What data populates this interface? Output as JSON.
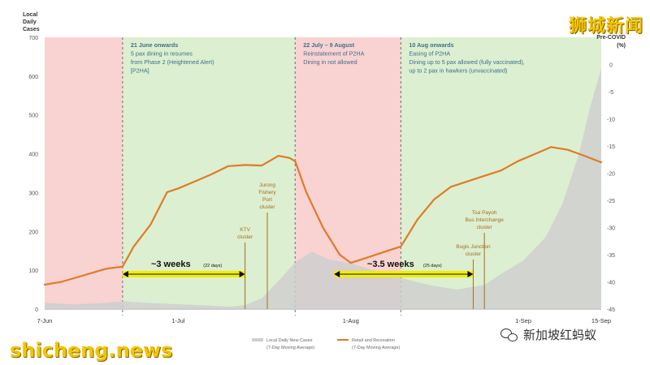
{
  "watermarks": {
    "top_right": "狮城新闻",
    "bottom_left": "shicheng.news",
    "wechat_account": "新加坡红蚂蚁"
  },
  "colors": {
    "phase_red": "#f9d2d2",
    "phase_green": "#dcefd0",
    "cases_fill": "#cfcfcf",
    "mobility_line": "#e07b26",
    "annotation_text": "#a86b1f",
    "phase_text": "#3f6f8c",
    "duration_bar": "#f2ee00"
  },
  "chart_data": {
    "type": "line",
    "x_start": "2021-06-07",
    "x_end": "2021-09-15",
    "x_ticks": [
      {
        "date": "2021-06-07",
        "label": "7-Jun"
      },
      {
        "date": "2021-07-01",
        "label": "1-Jul"
      },
      {
        "date": "2021-08-01",
        "label": "1-Aug"
      },
      {
        "date": "2021-09-01",
        "label": "1-Sep"
      },
      {
        "date": "2021-09-15",
        "label": "15-Sep"
      }
    ],
    "y_left": {
      "label_lines": [
        "Local",
        "Daily",
        "Cases"
      ],
      "range": [
        0,
        700
      ],
      "ticks": [
        0,
        100,
        200,
        300,
        400,
        500,
        600,
        700
      ]
    },
    "y_right": {
      "label_lines": [
        "Pre-COVID",
        "(%)"
      ],
      "range": [
        -45,
        5
      ],
      "ticks": [
        0,
        -5,
        -10,
        -15,
        -20,
        -25,
        -30,
        -35,
        -40,
        -45
      ]
    },
    "phases": [
      {
        "start": "2021-06-07",
        "end": "2021-06-21",
        "type": "red",
        "lines": []
      },
      {
        "start": "2021-06-21",
        "end": "2021-07-22",
        "type": "green",
        "lines": [
          "21 June onwards",
          "5 pax dining in resumes",
          "from Phase 2 (Heightened Alert)",
          "[P2HA]"
        ]
      },
      {
        "start": "2021-07-22",
        "end": "2021-08-10",
        "type": "red",
        "lines": [
          "22 July – 9 August",
          "Reinstatement of P2HA",
          "Dining in not allowed"
        ]
      },
      {
        "start": "2021-08-10",
        "end": "2021-09-15",
        "type": "green",
        "lines": [
          "10 Aug onwards",
          "Easing of P2HA",
          "Dining up to 5 pax allowed (fully vaccinated),",
          "up to 2 pax in hawkers (unvaccinated)"
        ]
      }
    ],
    "series": [
      {
        "name": "Local Daily New Cases",
        "sub": "(7-Day Moving Average)",
        "axis": "left",
        "kind": "area",
        "points": [
          [
            "2021-06-07",
            16
          ],
          [
            "2021-06-12",
            12
          ],
          [
            "2021-06-17",
            15
          ],
          [
            "2021-06-21",
            20
          ],
          [
            "2021-06-25",
            16
          ],
          [
            "2021-06-30",
            13
          ],
          [
            "2021-07-05",
            10
          ],
          [
            "2021-07-10",
            6
          ],
          [
            "2021-07-13",
            10
          ],
          [
            "2021-07-16",
            28
          ],
          [
            "2021-07-19",
            72
          ],
          [
            "2021-07-22",
            120
          ],
          [
            "2021-07-25",
            148
          ],
          [
            "2021-07-28",
            128
          ],
          [
            "2021-08-01",
            118
          ],
          [
            "2021-08-05",
            100
          ],
          [
            "2021-08-10",
            80
          ],
          [
            "2021-08-15",
            62
          ],
          [
            "2021-08-20",
            50
          ],
          [
            "2021-08-25",
            62
          ],
          [
            "2021-08-28",
            90
          ],
          [
            "2021-09-01",
            125
          ],
          [
            "2021-09-05",
            185
          ],
          [
            "2021-09-08",
            270
          ],
          [
            "2021-09-11",
            400
          ],
          [
            "2021-09-13",
            520
          ],
          [
            "2021-09-15",
            620
          ]
        ]
      },
      {
        "name": "Retail and Recreation",
        "sub": "(7-Day Moving Average)",
        "axis": "right",
        "kind": "line",
        "points": [
          [
            "2021-06-07",
            -40.5
          ],
          [
            "2021-06-10",
            -40.0
          ],
          [
            "2021-06-14",
            -38.8
          ],
          [
            "2021-06-18",
            -37.6
          ],
          [
            "2021-06-21",
            -37.2
          ],
          [
            "2021-06-23",
            -33.5
          ],
          [
            "2021-06-26",
            -29.5
          ],
          [
            "2021-06-29",
            -23.5
          ],
          [
            "2021-07-01",
            -22.8
          ],
          [
            "2021-07-04",
            -21.5
          ],
          [
            "2021-07-07",
            -20.2
          ],
          [
            "2021-07-10",
            -18.7
          ],
          [
            "2021-07-13",
            -18.5
          ],
          [
            "2021-07-16",
            -18.6
          ],
          [
            "2021-07-19",
            -16.8
          ],
          [
            "2021-07-21",
            -17.2
          ],
          [
            "2021-07-22",
            -17.8
          ],
          [
            "2021-07-24",
            -23.5
          ],
          [
            "2021-07-27",
            -30.0
          ],
          [
            "2021-07-30",
            -35.0
          ],
          [
            "2021-08-01",
            -36.5
          ],
          [
            "2021-08-04",
            -35.5
          ],
          [
            "2021-08-07",
            -34.5
          ],
          [
            "2021-08-10",
            -33.5
          ],
          [
            "2021-08-13",
            -28.5
          ],
          [
            "2021-08-16",
            -24.8
          ],
          [
            "2021-08-19",
            -22.5
          ],
          [
            "2021-08-22",
            -21.5
          ],
          [
            "2021-08-25",
            -20.5
          ],
          [
            "2021-08-28",
            -19.5
          ],
          [
            "2021-08-31",
            -17.8
          ],
          [
            "2021-09-03",
            -16.5
          ],
          [
            "2021-09-06",
            -15.2
          ],
          [
            "2021-09-09",
            -15.7
          ],
          [
            "2021-09-12",
            -16.8
          ],
          [
            "2021-09-15",
            -18.0
          ]
        ]
      }
    ],
    "durations": [
      {
        "start": "2021-06-21",
        "end": "2021-07-13",
        "text": "~3 weeks",
        "sub": "(22 days)"
      },
      {
        "start": "2021-07-29",
        "end": "2021-08-23",
        "text": "~3.5 weeks",
        "sub": "(25 days)"
      }
    ],
    "events": [
      {
        "date": "2021-07-13",
        "lines": [
          "KTV",
          "cluster"
        ],
        "label_top_y": 285
      },
      {
        "date": "2021-07-17",
        "lines": [
          "Jurong",
          "Fishery",
          "Port",
          "cluster"
        ],
        "label_top_y": 230
      },
      {
        "date": "2021-08-23",
        "lines": [
          "Bugis Junction",
          "cluster"
        ],
        "label_top_y": 306
      },
      {
        "date": "2021-08-25",
        "lines": [
          "Toa Payoh",
          "Bus Interchange",
          "cluster"
        ],
        "label_top_y": 264
      }
    ]
  }
}
